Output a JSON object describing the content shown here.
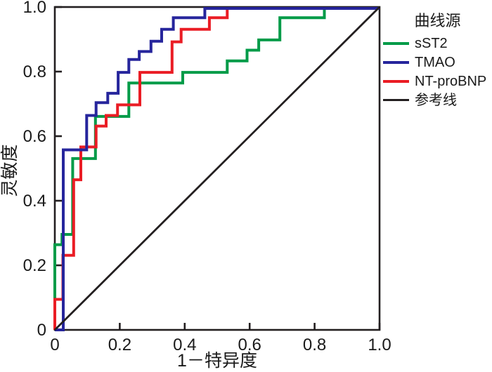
{
  "chart_data": {
    "type": "line",
    "subtype": "roc-step-curves",
    "title": "",
    "xlabel": "1－特异度",
    "ylabel": "灵敏度",
    "xlim": [
      0,
      1
    ],
    "ylim": [
      0,
      1
    ],
    "grid": false,
    "legend_title": "曲线源",
    "legend_position": "top-right",
    "frame_color": "#231f20",
    "x_ticks": {
      "values": [
        0,
        0.2,
        0.4,
        0.6,
        0.8,
        1
      ],
      "labels": [
        "0",
        "0.2",
        "0.4",
        "0.6",
        "0.8",
        "1.0"
      ]
    },
    "y_ticks": {
      "values": [
        0,
        0.2,
        0.4,
        0.6,
        0.8,
        1
      ],
      "labels": [
        "0",
        "0.2",
        "0.4",
        "0.6",
        "0.8",
        "1.0"
      ]
    },
    "series": [
      {
        "name": "sST2",
        "color": "#009b48",
        "points": [
          [
            0,
            0
          ],
          [
            0,
            0.265
          ],
          [
            0.022,
            0.265
          ],
          [
            0.022,
            0.297
          ],
          [
            0.055,
            0.297
          ],
          [
            0.055,
            0.533
          ],
          [
            0.125,
            0.533
          ],
          [
            0.125,
            0.664
          ],
          [
            0.228,
            0.664
          ],
          [
            0.228,
            0.768
          ],
          [
            0.394,
            0.768
          ],
          [
            0.394,
            0.801
          ],
          [
            0.531,
            0.801
          ],
          [
            0.531,
            0.837
          ],
          [
            0.592,
            0.837
          ],
          [
            0.592,
            0.87
          ],
          [
            0.628,
            0.87
          ],
          [
            0.628,
            0.902
          ],
          [
            0.693,
            0.902
          ],
          [
            0.693,
            0.971
          ],
          [
            0.83,
            0.971
          ],
          [
            0.83,
            1
          ],
          [
            1,
            1
          ]
        ]
      },
      {
        "name": "TMAO",
        "color": "#26259c",
        "points": [
          [
            0,
            0
          ],
          [
            0.026,
            0
          ],
          [
            0.026,
            0.56
          ],
          [
            0.098,
            0.56
          ],
          [
            0.098,
            0.667
          ],
          [
            0.127,
            0.667
          ],
          [
            0.127,
            0.707
          ],
          [
            0.163,
            0.707
          ],
          [
            0.163,
            0.736
          ],
          [
            0.195,
            0.736
          ],
          [
            0.195,
            0.801
          ],
          [
            0.228,
            0.801
          ],
          [
            0.228,
            0.841
          ],
          [
            0.26,
            0.841
          ],
          [
            0.26,
            0.866
          ],
          [
            0.296,
            0.866
          ],
          [
            0.296,
            0.898
          ],
          [
            0.329,
            0.898
          ],
          [
            0.329,
            0.935
          ],
          [
            0.365,
            0.935
          ],
          [
            0.365,
            0.971
          ],
          [
            0.462,
            0.971
          ],
          [
            0.462,
            1
          ],
          [
            1,
            1
          ]
        ]
      },
      {
        "name": "NT-proBNP",
        "color": "#ea1c24",
        "points": [
          [
            0,
            0
          ],
          [
            0,
            0.095
          ],
          [
            0.025,
            0.095
          ],
          [
            0.025,
            0.232
          ],
          [
            0.058,
            0.232
          ],
          [
            0.058,
            0.467
          ],
          [
            0.08,
            0.467
          ],
          [
            0.08,
            0.569
          ],
          [
            0.127,
            0.569
          ],
          [
            0.127,
            0.634
          ],
          [
            0.158,
            0.634
          ],
          [
            0.158,
            0.667
          ],
          [
            0.193,
            0.667
          ],
          [
            0.193,
            0.7
          ],
          [
            0.262,
            0.7
          ],
          [
            0.262,
            0.801
          ],
          [
            0.361,
            0.801
          ],
          [
            0.361,
            0.896
          ],
          [
            0.389,
            0.896
          ],
          [
            0.389,
            0.935
          ],
          [
            0.476,
            0.935
          ],
          [
            0.476,
            0.971
          ],
          [
            0.531,
            0.971
          ],
          [
            0.531,
            1
          ],
          [
            1,
            1
          ]
        ]
      },
      {
        "name": "参考线",
        "color": "#231f20",
        "points": [
          [
            0,
            0
          ],
          [
            1,
            1
          ]
        ]
      }
    ]
  }
}
